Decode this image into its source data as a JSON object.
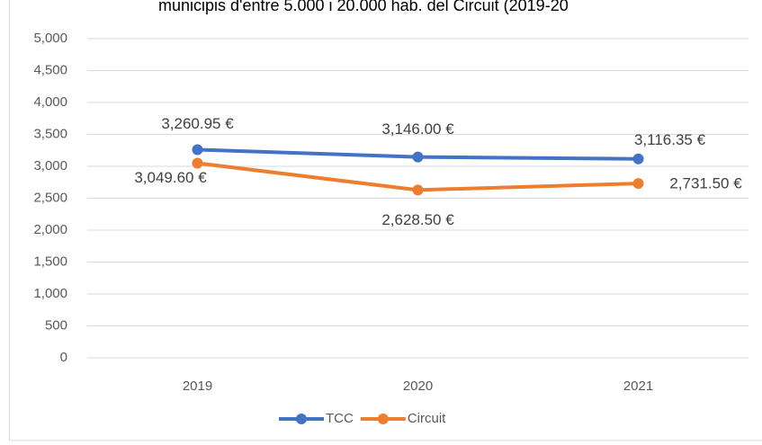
{
  "chart_data": {
    "type": "line",
    "title": "municipis d'entre 5.000 i 20.000 hab. del Circuit (2019-20",
    "categories": [
      "2019",
      "2020",
      "2021"
    ],
    "series": [
      {
        "name": "TCC",
        "color": "#4472c4",
        "values": [
          3260.95,
          3146.0,
          3116.35
        ],
        "value_labels": [
          "3,260.95 €",
          "3,146.00 €",
          "3,116.35 €"
        ]
      },
      {
        "name": "Circuit",
        "color": "#ed7d31",
        "values": [
          3049.6,
          2628.5,
          2731.5
        ],
        "value_labels": [
          "3,049.60 €",
          "2,628.50 €",
          "2,731.50 €"
        ]
      }
    ],
    "ylim": [
      0,
      5000
    ],
    "yticks": [
      0,
      500,
      {
        "value": 1000,
        "label": "1,000"
      },
      {
        "value": 1500,
        "label": "1,500"
      },
      {
        "value": 2000,
        "label": "2,000"
      },
      {
        "value": 2500,
        "label": "2,500"
      },
      {
        "value": 3000,
        "label": "3,000"
      },
      {
        "value": 3500,
        "label": "3,500"
      },
      {
        "value": 4000,
        "label": "4,000"
      },
      {
        "value": 4500,
        "label": "4,500"
      },
      {
        "value": 5000,
        "label": "5,000"
      }
    ],
    "grid": true,
    "legend": "bottom"
  }
}
